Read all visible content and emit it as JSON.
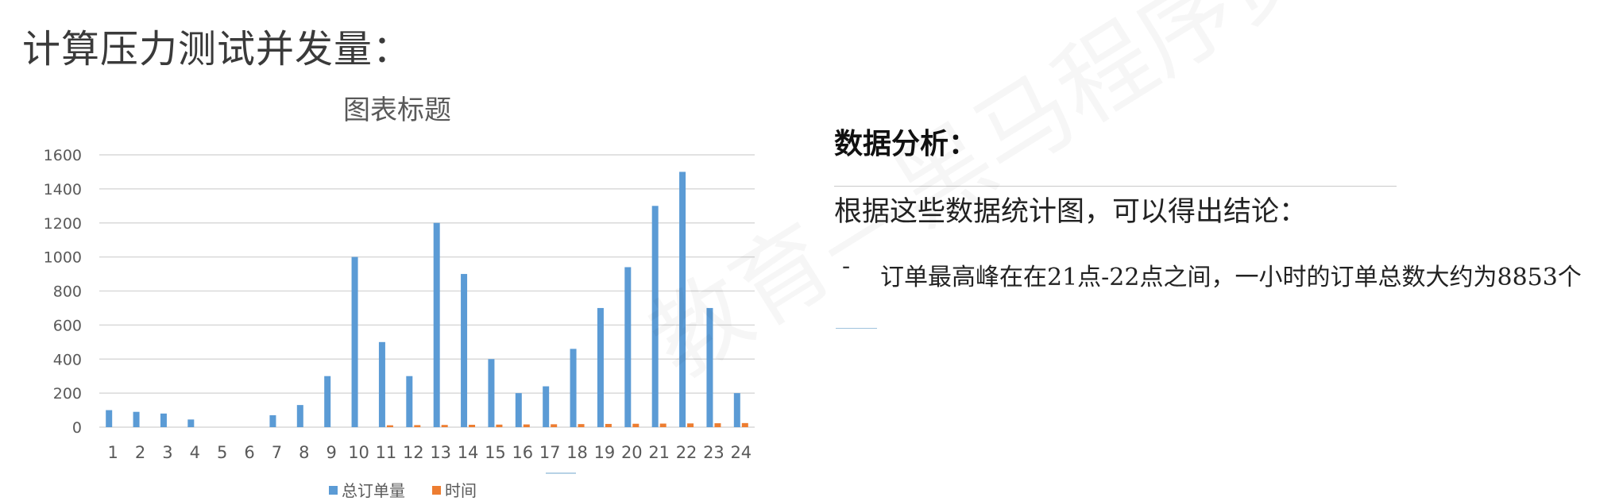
{
  "heading": "计算压力测试并发量：",
  "analysis": {
    "title": "数据分析：",
    "conclusion": "根据这些数据统计图，可以得出结论：",
    "bullet_marker": "-",
    "bullet_text": "订单最高峰在在21点-22点之间，一小时的订单总数大约为8853个"
  },
  "watermark": "教育—黑马程序员",
  "colors": {
    "series1": "#5b9bd5",
    "series2": "#ed7d31",
    "grid": "#d9d9d9",
    "axis_text": "#595959"
  },
  "chart_data": {
    "type": "bar",
    "title": "图表标题",
    "categories": [
      "1",
      "2",
      "3",
      "4",
      "5",
      "6",
      "7",
      "8",
      "9",
      "10",
      "11",
      "12",
      "13",
      "14",
      "15",
      "16",
      "17",
      "18",
      "19",
      "20",
      "21",
      "22",
      "23",
      "24"
    ],
    "series": [
      {
        "name": "总订单量",
        "values": [
          100,
          90,
          80,
          45,
          0,
          0,
          70,
          130,
          300,
          1000,
          500,
          300,
          1200,
          900,
          400,
          200,
          240,
          460,
          700,
          940,
          1300,
          1500,
          700,
          200
        ]
      },
      {
        "name": "时间",
        "values": [
          0,
          0,
          0,
          0,
          0,
          0,
          0,
          0,
          0,
          0,
          11,
          12,
          13,
          14,
          15,
          16,
          17,
          18,
          19,
          20,
          21,
          22,
          23,
          24
        ]
      }
    ],
    "ylim": [
      0,
      1600
    ],
    "yticks": [
      0,
      200,
      400,
      600,
      800,
      1000,
      1200,
      1400,
      1600
    ],
    "grid": true,
    "legend_position": "bottom"
  }
}
